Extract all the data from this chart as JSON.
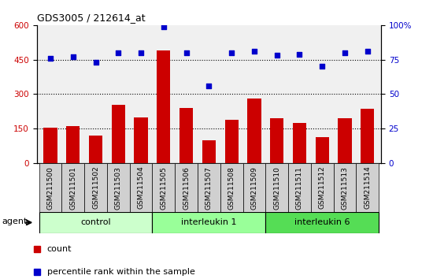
{
  "title": "GDS3005 / 212614_at",
  "samples": [
    "GSM211500",
    "GSM211501",
    "GSM211502",
    "GSM211503",
    "GSM211504",
    "GSM211505",
    "GSM211506",
    "GSM211507",
    "GSM211508",
    "GSM211509",
    "GSM211510",
    "GSM211511",
    "GSM211512",
    "GSM211513",
    "GSM211514"
  ],
  "counts": [
    155,
    162,
    120,
    255,
    200,
    490,
    240,
    100,
    190,
    280,
    195,
    175,
    115,
    195,
    235
  ],
  "percentiles": [
    76,
    77,
    73,
    80,
    80,
    99,
    80,
    56,
    80,
    81,
    78,
    79,
    70,
    80,
    81
  ],
  "groups": [
    {
      "label": "control",
      "start": 0,
      "end": 5,
      "color": "#ccffcc"
    },
    {
      "label": "interleukin 1",
      "start": 5,
      "end": 10,
      "color": "#99ff99"
    },
    {
      "label": "interleukin 6",
      "start": 10,
      "end": 15,
      "color": "#55dd55"
    }
  ],
  "bar_color": "#cc0000",
  "dot_color": "#0000cc",
  "ylim_left": [
    0,
    600
  ],
  "ylim_right": [
    0,
    100
  ],
  "yticks_left": [
    0,
    150,
    300,
    450,
    600
  ],
  "yticks_right": [
    0,
    25,
    50,
    75,
    100
  ],
  "hlines": [
    150,
    300,
    450
  ],
  "plot_bg": "#f0f0f0",
  "tick_bg": "#d0d0d0"
}
